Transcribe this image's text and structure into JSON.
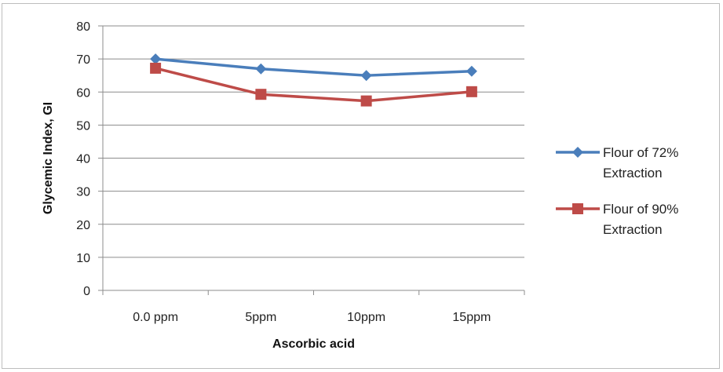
{
  "chart_data": {
    "type": "line",
    "title": "",
    "xlabel": "Ascorbic acid",
    "ylabel": "Glycemic Index, GI",
    "categories": [
      "0.0 ppm",
      "5ppm",
      "10ppm",
      "15ppm"
    ],
    "ylim": [
      0,
      80
    ],
    "yticks": [
      0,
      10,
      20,
      30,
      40,
      50,
      60,
      70,
      80
    ],
    "grid": true,
    "legend": "right",
    "series": [
      {
        "name_lines": [
          "Flour of 72%",
          "Extraction"
        ],
        "values": [
          70,
          67,
          65,
          66.3
        ],
        "color": "#4a7ebb",
        "marker": "diamond"
      },
      {
        "name_lines": [
          "Flour of 90%",
          "Extraction"
        ],
        "values": [
          67.2,
          59.3,
          57.3,
          60.1
        ],
        "color": "#be4b48",
        "marker": "square"
      }
    ]
  }
}
